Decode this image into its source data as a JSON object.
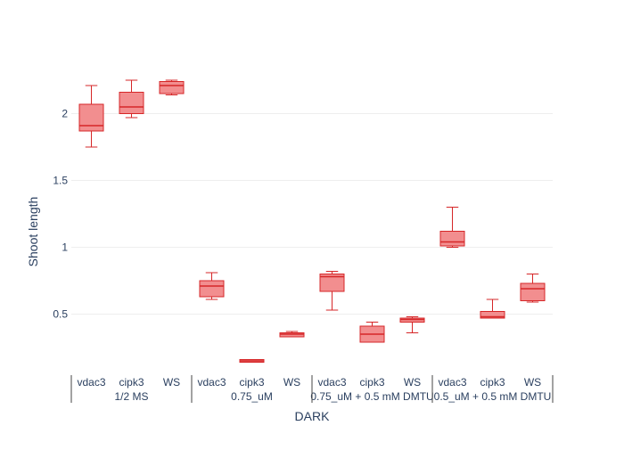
{
  "chart_data": {
    "type": "box",
    "xlabel": "DARK",
    "ylabel": "Shoot length",
    "y_ticks": [
      0.5,
      1,
      1.5,
      2
    ],
    "y_range": [
      0.05,
      2.45
    ],
    "grid": true,
    "colors": {
      "box_fill": "#f28e8f",
      "box_line": "#d62728",
      "grid": "#eeeeee",
      "text": "#2a3f5f",
      "divider": "#444444"
    },
    "groups": [
      {
        "label": "1/2 MS",
        "boxes": [
          {
            "category": "vdac3",
            "min": 1.75,
            "q1": 1.87,
            "median": 1.91,
            "q3": 2.07,
            "max": 2.21
          },
          {
            "category": "cipk3",
            "min": 1.97,
            "q1": 2.0,
            "median": 2.05,
            "q3": 2.16,
            "max": 2.25
          },
          {
            "category": "WS",
            "min": 2.14,
            "q1": 2.15,
            "median": 2.21,
            "q3": 2.24,
            "max": 2.25
          }
        ]
      },
      {
        "label": "0.75_uM",
        "boxes": [
          {
            "category": "vdac3",
            "min": 0.61,
            "q1": 0.63,
            "median": 0.71,
            "q3": 0.75,
            "max": 0.81
          },
          {
            "category": "cipk3",
            "min": 0.14,
            "q1": 0.14,
            "median": 0.15,
            "q3": 0.16,
            "max": 0.16
          },
          {
            "category": "WS",
            "min": 0.33,
            "q1": 0.33,
            "median": 0.35,
            "q3": 0.36,
            "max": 0.37
          }
        ]
      },
      {
        "label": "0.75_uM + 0.5 mM DMTU",
        "boxes": [
          {
            "category": "vdac3",
            "min": 0.53,
            "q1": 0.67,
            "median": 0.78,
            "q3": 0.8,
            "max": 0.82
          },
          {
            "category": "cipk3",
            "min": 0.29,
            "q1": 0.29,
            "median": 0.35,
            "q3": 0.41,
            "max": 0.44
          },
          {
            "category": "WS",
            "min": 0.36,
            "q1": 0.44,
            "median": 0.46,
            "q3": 0.47,
            "max": 0.48
          }
        ]
      },
      {
        "label": "0.5_uM + 0.5 mM DMTU",
        "boxes": [
          {
            "category": "vdac3",
            "min": 1.0,
            "q1": 1.01,
            "median": 1.04,
            "q3": 1.12,
            "max": 1.3
          },
          {
            "category": "cipk3",
            "min": 0.47,
            "q1": 0.47,
            "median": 0.48,
            "q3": 0.52,
            "max": 0.61
          },
          {
            "category": "WS",
            "min": 0.59,
            "q1": 0.6,
            "median": 0.69,
            "q3": 0.73,
            "max": 0.8
          }
        ]
      }
    ]
  }
}
